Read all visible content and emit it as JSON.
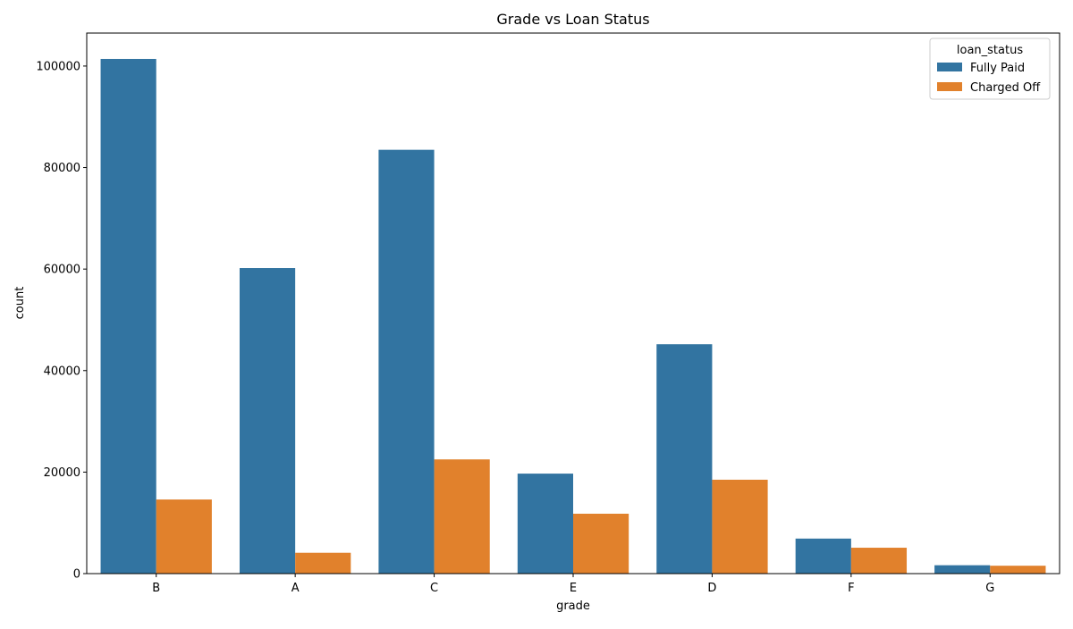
{
  "chart_data": {
    "type": "bar",
    "title": "Grade vs Loan Status",
    "xlabel": "grade",
    "ylabel": "count",
    "categories": [
      "B",
      "A",
      "C",
      "E",
      "D",
      "F",
      "G"
    ],
    "series": [
      {
        "name": "Fully Paid",
        "color": "#3274a1",
        "values": [
          101400,
          60200,
          83500,
          19700,
          45200,
          6900,
          1650
        ]
      },
      {
        "name": "Charged Off",
        "color": "#e1812c",
        "values": [
          14600,
          4100,
          22500,
          11800,
          18500,
          5100,
          1550
        ]
      }
    ],
    "ylim": [
      0,
      106500
    ],
    "yticks": [
      0,
      20000,
      40000,
      60000,
      80000,
      100000
    ],
    "ytick_labels": [
      "0",
      "20000",
      "40000",
      "60000",
      "80000",
      "100000"
    ],
    "grid": false,
    "legend": {
      "title": "loan_status",
      "placement": "top-right"
    }
  }
}
